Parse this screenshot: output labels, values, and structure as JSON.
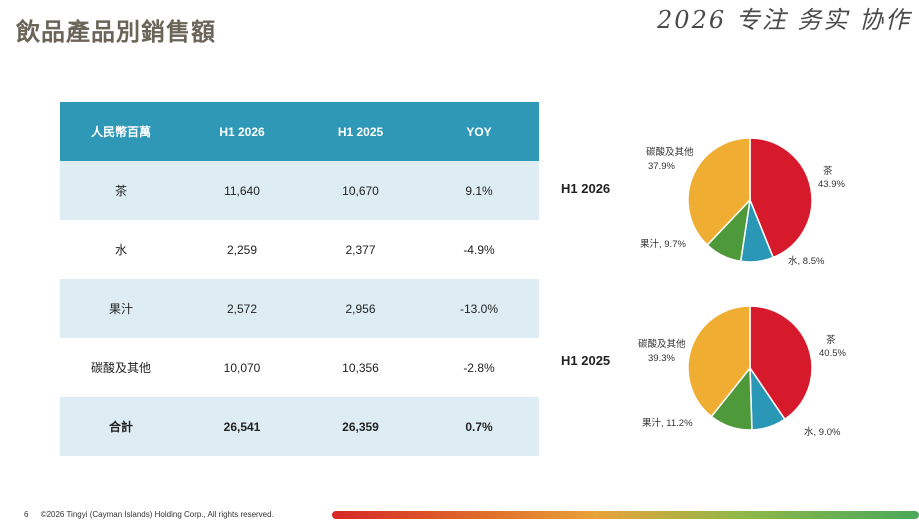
{
  "page": {
    "title": "飲品產品別銷售額",
    "slogan": "2026 专注 务实 协作"
  },
  "table": {
    "headers": [
      "人民幣百萬",
      "H1 2026",
      "H1 2025",
      "YOY"
    ],
    "rows": [
      {
        "name": "茶",
        "h1_2026": "11,640",
        "h1_2025": "10,670",
        "yoy": "9.1%"
      },
      {
        "name": "水",
        "h1_2026": "2,259",
        "h1_2025": "2,377",
        "yoy": "-4.9%"
      },
      {
        "name": "果汁",
        "h1_2026": "2,572",
        "h1_2025": "2,956",
        "yoy": "-13.0%"
      },
      {
        "name": "碳酸及其他",
        "h1_2026": "10,070",
        "h1_2025": "10,356",
        "yoy": "-2.8%"
      },
      {
        "name": "合計",
        "h1_2026": "26,541",
        "h1_2025": "26,359",
        "yoy": "0.7%"
      }
    ]
  },
  "chart_data": [
    {
      "type": "pie",
      "title": "H1 2026",
      "categories": [
        "茶",
        "水",
        "果汁",
        "碳酸及其他"
      ],
      "values": [
        43.9,
        8.5,
        9.7,
        37.9
      ],
      "labels": [
        "茶 43.9%",
        "水, 8.5%",
        "果汁, 9.7%",
        "碳酸及其他 37.9%"
      ],
      "colors": [
        "#d71a2b",
        "#2a97b7",
        "#4e9a3a",
        "#efae32"
      ]
    },
    {
      "type": "pie",
      "title": "H1 2025",
      "categories": [
        "茶",
        "水",
        "果汁",
        "碳酸及其他"
      ],
      "values": [
        40.5,
        9.0,
        11.2,
        39.3
      ],
      "labels": [
        "茶 40.5%",
        "水, 9.0%",
        "果汁, 11.2%",
        "碳酸及其他 39.3%"
      ],
      "colors": [
        "#d71a2b",
        "#2a97b7",
        "#4e9a3a",
        "#efae32"
      ]
    }
  ],
  "footer": {
    "page_number": "6",
    "copyright": "©2026 Tingyi (Cayman Islands) Holding Corp., All rights reserved."
  }
}
